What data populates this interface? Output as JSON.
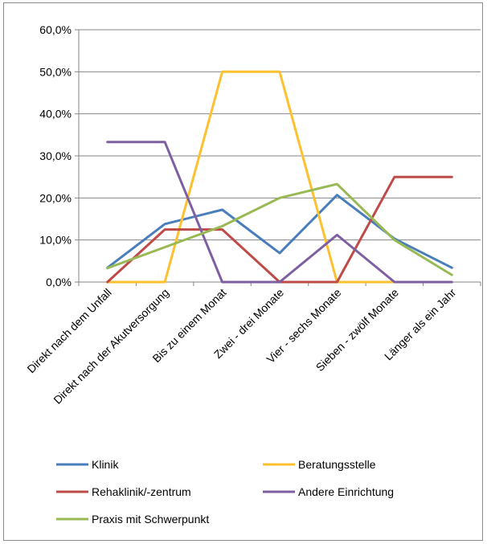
{
  "chart_data": {
    "type": "line",
    "title": "",
    "xlabel": "",
    "ylabel": "",
    "categories": [
      "Direkt nach dem Unfall",
      "Direkt nach der Akutversorgung",
      "Bis zu einem Monat",
      "Zwei - drei Monate",
      "Vier - sechs Monate",
      "Sieben - zwölf Monate",
      "Länger als ein Jahr"
    ],
    "y_ticks": [
      "0,0%",
      "10,0%",
      "20,0%",
      "30,0%",
      "40,0%",
      "50,0%",
      "60,0%"
    ],
    "ylim": [
      0,
      60
    ],
    "grid": true,
    "legend_position": "bottom",
    "series": [
      {
        "name": "Klinik",
        "color": "#4a7ebb",
        "values": [
          3.4,
          13.8,
          17.2,
          6.9,
          20.7,
          10.3,
          3.4
        ]
      },
      {
        "name": "Beratungsstelle",
        "color": "#fdc02f",
        "values": [
          0,
          0,
          50,
          50,
          0,
          0,
          0
        ]
      },
      {
        "name": "Rehaklinik/-zentrum",
        "color": "#be4b48",
        "values": [
          0,
          12.5,
          12.5,
          0,
          0,
          25,
          25
        ]
      },
      {
        "name": "Andere Einrichtung",
        "color": "#7e5fa2",
        "values": [
          33.3,
          33.3,
          0,
          0,
          11.2,
          0,
          0
        ]
      },
      {
        "name": "Praxis mit Schwerpunkt",
        "color": "#98b954",
        "values": [
          3.3,
          8.3,
          13.3,
          20,
          23.3,
          10,
          1.7
        ]
      }
    ]
  }
}
